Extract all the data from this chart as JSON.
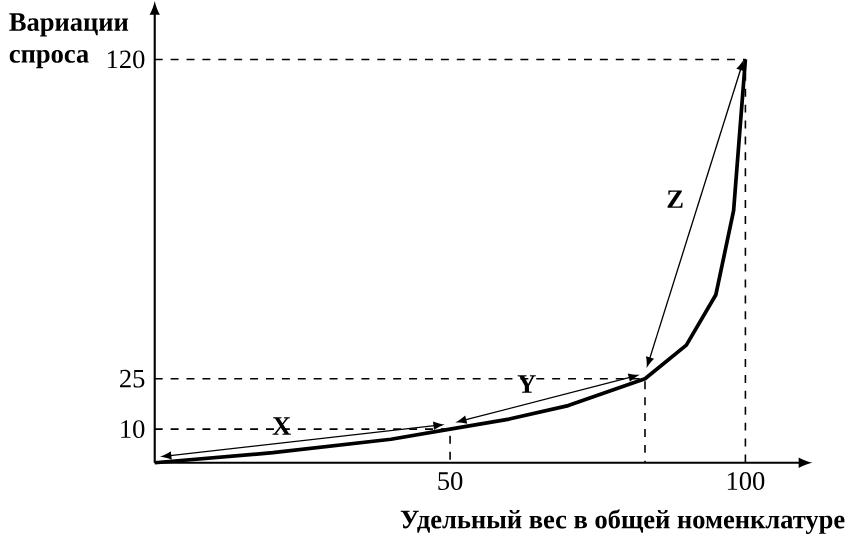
{
  "chart_data": {
    "type": "line",
    "xlabel": "Удельный вес в общей номенклатуре",
    "ylabel": "Вариации спроса",
    "xlim": [
      0,
      110
    ],
    "ylim": [
      0,
      135
    ],
    "xticks": [
      50,
      100
    ],
    "yticks": [
      10,
      25,
      120
    ],
    "grid": false,
    "marker": "none",
    "series": [
      {
        "color": "#000000",
        "line_style": "solid",
        "x": [
          0,
          20,
          40,
          50,
          60,
          70,
          83,
          90,
          95,
          98,
          100
        ],
        "values": [
          0,
          3,
          7,
          10,
          13,
          17,
          25,
          35,
          50,
          75,
          120
        ]
      },
      {
        "color": "#000000",
        "line_style": "dashed",
        "x": [
          0,
          50,
          50
        ],
        "values": [
          10,
          10,
          0
        ]
      },
      {
        "color": "#000000",
        "line_style": "dashed",
        "x": [
          0,
          83,
          83
        ],
        "values": [
          25,
          25,
          0
        ]
      },
      {
        "color": "#000000",
        "line_style": "dashed",
        "x": [
          0,
          100,
          100
        ],
        "values": [
          120,
          120,
          0
        ]
      }
    ],
    "annotations": [
      "X",
      "Y",
      "Z"
    ]
  }
}
